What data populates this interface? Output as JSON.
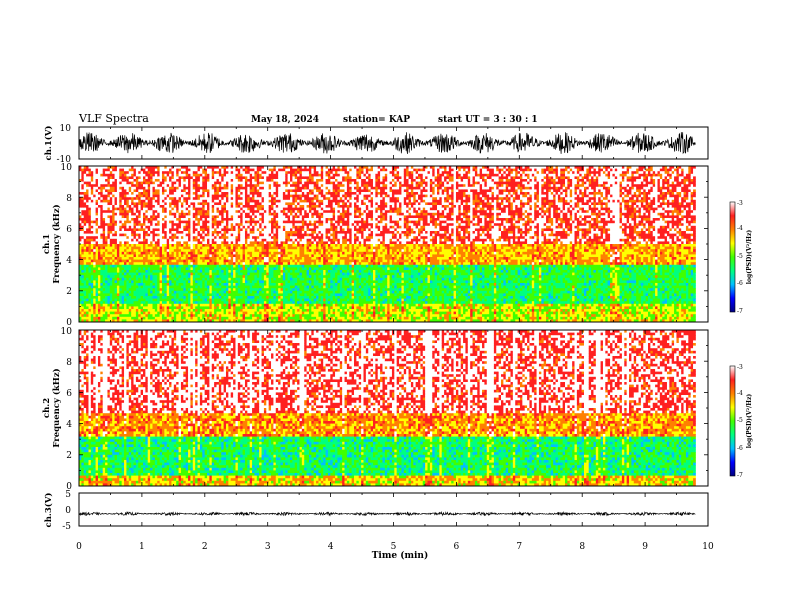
{
  "header": {
    "title": "VLF Spectra",
    "date": "May 18, 2024",
    "station": "station= KAP",
    "start_ut": "start  UT  =   3  : 30 : 1"
  },
  "colors": {
    "scale": [
      "#000080",
      "#0000ff",
      "#00c0ff",
      "#00ff80",
      "#40ff00",
      "#ffff00",
      "#ff8000",
      "#ff2020",
      "#ffffff"
    ],
    "trace": "#000000"
  },
  "chart_data": [
    {
      "id": "ch1-waveform",
      "type": "line",
      "ylabel": "ch.1(V)",
      "ylim": [
        -10,
        10
      ],
      "yticks": [
        "10",
        "-10"
      ],
      "xlim": [
        0,
        10
      ],
      "note_values": "dense noisy waveform, amplitude roughly between -7 and 7 V over 0–9.8 min"
    },
    {
      "id": "ch1-spectrogram",
      "type": "heatmap",
      "ylabel_top": "ch.1",
      "ylabel": "Frequency  (kHz)",
      "ylim": [
        0,
        10
      ],
      "yticks": [
        "0",
        "2",
        "4",
        "6",
        "8",
        "10"
      ],
      "xlim": [
        0,
        10
      ],
      "data_end_min": 9.8,
      "colorbar": {
        "label": "log(PSD)(V²/Hz)",
        "ticks": [
          "-3",
          "-4",
          "-5",
          "-6",
          "-7"
        ],
        "range": [
          -7,
          -3
        ]
      },
      "bands_khz": [
        {
          "from": 0.0,
          "to": 1.2,
          "level": -4.6
        },
        {
          "from": 1.2,
          "to": 3.6,
          "level": -5.3
        },
        {
          "from": 3.6,
          "to": 5.0,
          "level": -4.2
        },
        {
          "from": 5.0,
          "to": 10.0,
          "level": -3.4
        }
      ]
    },
    {
      "id": "ch2-spectrogram",
      "type": "heatmap",
      "ylabel_top": "ch.2",
      "ylabel": "Frequency  (kHz)",
      "ylim": [
        0,
        10
      ],
      "yticks": [
        "0",
        "2",
        "4",
        "6",
        "8",
        "10"
      ],
      "xlim": [
        0,
        10
      ],
      "data_end_min": 9.8,
      "colorbar": {
        "label": "log(PSD)(V²/Hz)",
        "ticks": [
          "-3",
          "-4",
          "-5",
          "-6",
          "-7"
        ],
        "range": [
          -7,
          -3
        ]
      },
      "bands_khz": [
        {
          "from": 0.0,
          "to": 0.6,
          "level": -4.4
        },
        {
          "from": 0.6,
          "to": 3.2,
          "level": -5.4
        },
        {
          "from": 3.2,
          "to": 4.6,
          "level": -4.1
        },
        {
          "from": 4.6,
          "to": 10.0,
          "level": -3.3
        }
      ]
    },
    {
      "id": "ch3-waveform",
      "type": "line",
      "ylabel": "ch.3(V)",
      "ylim": [
        -5,
        5
      ],
      "yticks": [
        "5",
        "0",
        "-5"
      ],
      "xlim": [
        0,
        10
      ],
      "xlabel": "Time  (min)",
      "xticks": [
        "0",
        "1",
        "2",
        "3",
        "4",
        "5",
        "6",
        "7",
        "8",
        "9",
        "10"
      ],
      "note_values": "thin dense trace near -1.3 V with small amplitude over 0–9.8 min"
    }
  ]
}
